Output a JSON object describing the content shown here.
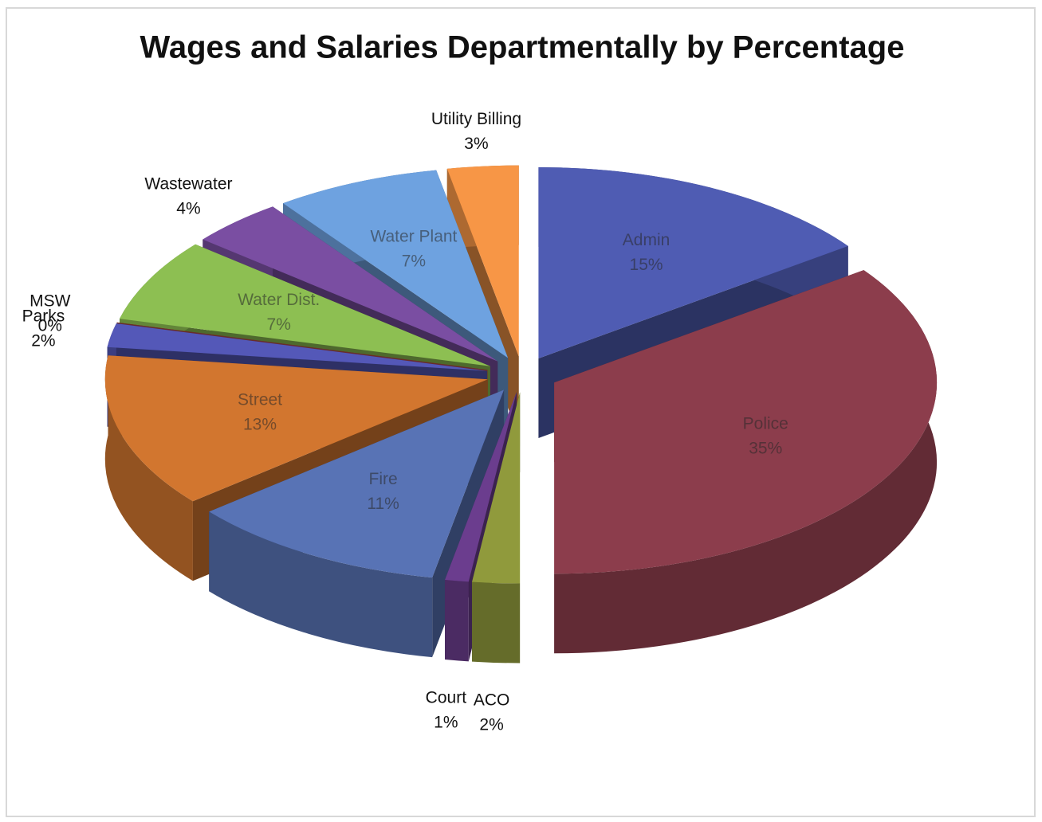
{
  "chart_data": {
    "type": "pie",
    "title": "Wages and Salaries Departmentally by Percentage",
    "categories": [
      "Admin",
      "Police",
      "ACO",
      "Court",
      "Fire",
      "Street",
      "Parks",
      "MSW",
      "Water Dist.",
      "Wastewater",
      "Water Plant",
      "Utility Billing"
    ],
    "values": [
      15,
      35,
      2,
      1,
      11,
      13,
      2,
      0,
      7,
      4,
      7,
      3
    ],
    "value_labels": [
      "15%",
      "35%",
      "2%",
      "1%",
      "11%",
      "13%",
      "2%",
      "0%",
      "7%",
      "4%",
      "7%",
      "3%"
    ],
    "colors": [
      "#4f5cb3",
      "#8c3d4c",
      "#909a3c",
      "#6b3d8e",
      "#5873b5",
      "#d2762f",
      "#5458b8",
      "#c0504d",
      "#8dbf52",
      "#7a4ea2",
      "#6ea2e0",
      "#f79646"
    ]
  }
}
